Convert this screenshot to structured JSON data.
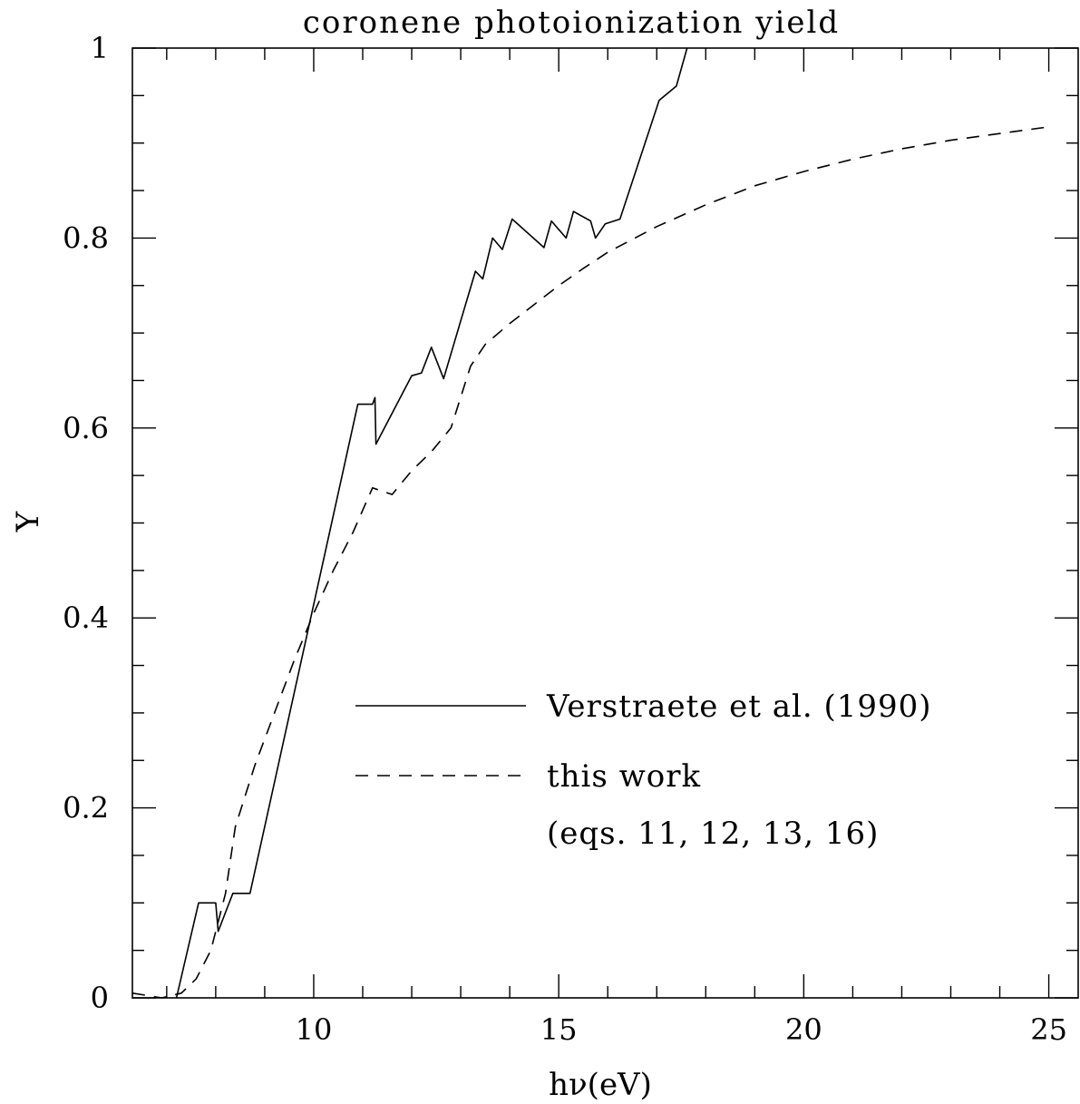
{
  "chart_data": {
    "type": "line",
    "title": "coronene photoionization yield",
    "xlabel": "hν(eV)",
    "ylabel": "Y",
    "xlim": [
      6.3,
      25.6
    ],
    "ylim": [
      0,
      1
    ],
    "xticks_major": [
      10,
      15,
      20,
      25
    ],
    "xtick_labels": [
      "10",
      "15",
      "20",
      "25"
    ],
    "yticks_major": [
      0,
      0.2,
      0.4,
      0.6,
      0.8,
      1
    ],
    "ytick_labels": [
      "0",
      "0.2",
      "0.4",
      "0.6",
      "0.8",
      "1"
    ],
    "grid": false,
    "legend_position": "center-right",
    "series": [
      {
        "name": "Verstraete et al. (1990)",
        "style": "solid",
        "color": "#000000",
        "x": [
          7.2,
          7.65,
          8.0,
          8.05,
          8.35,
          8.7,
          10.9,
          11.2,
          11.25,
          11.27,
          12.0,
          12.2,
          12.4,
          12.65,
          13.3,
          13.45,
          13.65,
          13.85,
          14.05,
          14.7,
          14.85,
          15.15,
          15.3,
          15.65,
          15.75,
          15.95,
          16.25,
          17.05,
          17.4,
          17.62
        ],
        "y": [
          0.0,
          0.1,
          0.1,
          0.07,
          0.11,
          0.11,
          0.625,
          0.625,
          0.632,
          0.583,
          0.655,
          0.658,
          0.685,
          0.652,
          0.765,
          0.757,
          0.8,
          0.788,
          0.82,
          0.79,
          0.818,
          0.8,
          0.828,
          0.818,
          0.8,
          0.815,
          0.82,
          0.945,
          0.96,
          1.0
        ]
      },
      {
        "name": "this work",
        "style": "dashed",
        "color": "#000000",
        "x": [
          6.3,
          6.9,
          7.3,
          7.6,
          7.9,
          8.2,
          8.4,
          8.8,
          9.2,
          9.6,
          10.0,
          10.4,
          10.8,
          11.2,
          11.6,
          12.0,
          12.4,
          12.8,
          13.2,
          13.5,
          14.0,
          14.5,
          15.0,
          15.5,
          16.0,
          17.0,
          18.0,
          19.0,
          20.0,
          21.0,
          22.0,
          23.0,
          24.0,
          25.0
        ],
        "y": [
          0.005,
          0.0,
          0.005,
          0.02,
          0.05,
          0.11,
          0.18,
          0.245,
          0.3,
          0.355,
          0.405,
          0.45,
          0.49,
          0.537,
          0.53,
          0.555,
          0.575,
          0.6,
          0.665,
          0.688,
          0.71,
          0.73,
          0.75,
          0.768,
          0.785,
          0.812,
          0.835,
          0.855,
          0.87,
          0.883,
          0.894,
          0.903,
          0.91,
          0.917
        ]
      }
    ],
    "legend": [
      {
        "label": "Verstraete et al. (1990)",
        "style": "solid"
      },
      {
        "label": "this work",
        "style": "dashed"
      },
      {
        "label": " (eqs. 11, 12, 13, 16)",
        "style": "none"
      }
    ]
  }
}
